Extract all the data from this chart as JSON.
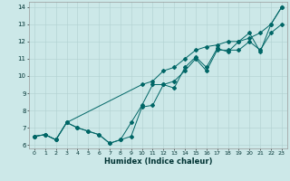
{
  "xlabel": "Humidex (Indice chaleur)",
  "background_color": "#cce8e8",
  "grid_color": "#b0d0d0",
  "line_color": "#006666",
  "xlim": [
    -0.5,
    23.5
  ],
  "ylim": [
    5.8,
    14.3
  ],
  "xticks": [
    0,
    1,
    2,
    3,
    4,
    5,
    6,
    7,
    8,
    9,
    10,
    11,
    12,
    13,
    14,
    15,
    16,
    17,
    18,
    19,
    20,
    21,
    22,
    23
  ],
  "yticks": [
    6,
    7,
    8,
    9,
    10,
    11,
    12,
    13,
    14
  ],
  "series1": {
    "x": [
      0,
      1,
      2,
      3,
      10,
      11,
      12,
      13,
      14,
      15,
      16,
      17,
      18,
      19,
      20,
      21,
      22,
      23
    ],
    "y": [
      6.5,
      6.6,
      6.3,
      7.3,
      9.5,
      9.7,
      10.3,
      10.5,
      11.0,
      11.5,
      11.7,
      11.8,
      12.0,
      12.0,
      12.2,
      12.5,
      13.0,
      14.0
    ]
  },
  "series2": {
    "x": [
      0,
      1,
      2,
      3,
      4,
      5,
      6,
      7,
      8,
      9,
      10,
      11,
      12,
      13,
      14,
      15,
      16,
      17,
      18,
      19,
      20,
      21,
      22,
      23
    ],
    "y": [
      6.5,
      6.6,
      6.3,
      7.3,
      7.0,
      6.8,
      6.6,
      6.1,
      6.3,
      7.3,
      8.3,
      9.5,
      9.5,
      9.7,
      10.3,
      11.0,
      10.3,
      11.5,
      11.5,
      11.5,
      12.0,
      11.5,
      12.5,
      13.0
    ]
  },
  "series3": {
    "x": [
      0,
      1,
      2,
      3,
      4,
      5,
      6,
      7,
      8,
      9,
      10,
      11,
      12,
      13,
      14,
      15,
      16,
      17,
      18,
      19,
      20,
      21,
      22,
      23
    ],
    "y": [
      6.5,
      6.6,
      6.3,
      7.3,
      7.0,
      6.8,
      6.6,
      6.1,
      6.3,
      6.5,
      8.2,
      8.3,
      9.5,
      9.3,
      10.5,
      11.1,
      10.5,
      11.6,
      11.4,
      12.0,
      12.5,
      11.4,
      13.0,
      14.0
    ]
  }
}
